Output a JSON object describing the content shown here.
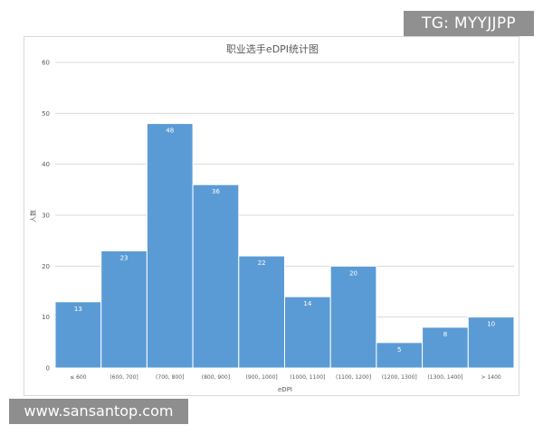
{
  "overlays": {
    "tg_label": "TG: MYYJJPP",
    "site_label": "www.sansantop.com"
  },
  "colors": {
    "bar": "#5b9bd5",
    "bar_edge": "#ffffff",
    "grid": "#d9d9d9",
    "axis_text": "#595959",
    "title_text": "#595959"
  },
  "chart_data": {
    "type": "bar",
    "title": "职业选手eDPI统计图",
    "xlabel": "eDPI",
    "ylabel": "人数",
    "categories": [
      "≤ 600",
      "(600, 700]",
      "(700, 800]",
      "(800, 900]",
      "(900, 1000]",
      "(1000, 1100]",
      "(1100, 1200]",
      "(1200, 1300]",
      "(1300, 1400]",
      "> 1400"
    ],
    "values": [
      13,
      23,
      48,
      36,
      22,
      14,
      20,
      5,
      8,
      10
    ],
    "ylim": [
      0,
      60
    ],
    "yticks": [
      0,
      10,
      20,
      30,
      40,
      50,
      60
    ],
    "grid": true,
    "data_labels": true
  }
}
